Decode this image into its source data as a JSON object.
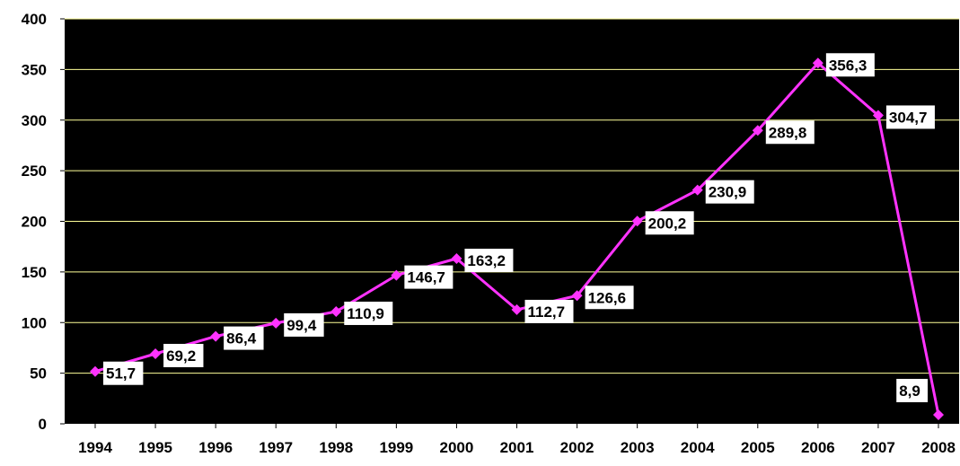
{
  "chart_data": {
    "type": "line",
    "title": "",
    "xlabel": "",
    "ylabel": "",
    "categories": [
      "1994",
      "1995",
      "1996",
      "1997",
      "1998",
      "1999",
      "2000",
      "2001",
      "2002",
      "2003",
      "2004",
      "2005",
      "2006",
      "2007",
      "2008"
    ],
    "series": [
      {
        "values": [
          51.7,
          69.2,
          86.4,
          99.4,
          110.9,
          146.7,
          163.2,
          112.7,
          126.6,
          200.2,
          230.9,
          289.8,
          356.3,
          304.7,
          8.9
        ],
        "labels": [
          "51,7",
          "69,2",
          "86,4",
          "99,4",
          "110,9",
          "146,7",
          "163,2",
          "112,7",
          "126,6",
          "200,2",
          "230,9",
          "289,8",
          "356,3",
          "304,7",
          "8,9"
        ]
      }
    ],
    "ylim": [
      0,
      400
    ],
    "yticks": [
      "0",
      "50",
      "100",
      "150",
      "200",
      "250",
      "300",
      "350",
      "400"
    ],
    "grid": true,
    "legend": "none",
    "colors": {
      "plot_background": "#000000",
      "gridline": "#ffff99",
      "line": "#ff33ff",
      "label_background": "#ffffff"
    }
  }
}
